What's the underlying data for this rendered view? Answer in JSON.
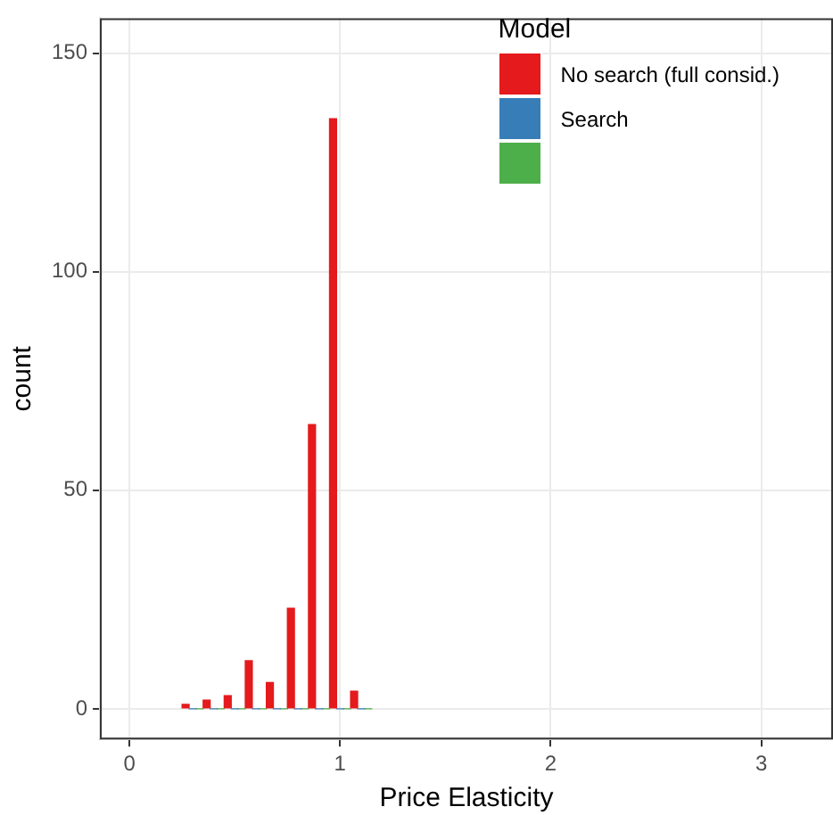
{
  "chart_data": {
    "type": "histogram",
    "xlabel": "Price Elasticity",
    "ylabel": "count",
    "legend_title": "Model",
    "bins": [
      0.25,
      0.35,
      0.45,
      0.55,
      0.65,
      0.75,
      0.85,
      0.95,
      1.05,
      1.15
    ],
    "series": [
      {
        "name": "No search (full consid.)",
        "color": "#e41a1c",
        "values": [
          1,
          2,
          3,
          11,
          6,
          23,
          65,
          135,
          4
        ]
      },
      {
        "name": "Search",
        "color": "#377eb8",
        "values": [
          0,
          0,
          0,
          0,
          0,
          0,
          0,
          0,
          0
        ]
      },
      {
        "color": "#4daf4a",
        "values": [
          0,
          0,
          0,
          0,
          0,
          0,
          0,
          0,
          0
        ]
      }
    ],
    "xlim": [
      -0.14,
      3.34
    ],
    "ylim": [
      -7,
      158
    ],
    "xticks": [
      0,
      1,
      2,
      3
    ],
    "yticks": [
      0,
      50,
      100,
      150
    ],
    "grid": true,
    "legend": "top right"
  }
}
